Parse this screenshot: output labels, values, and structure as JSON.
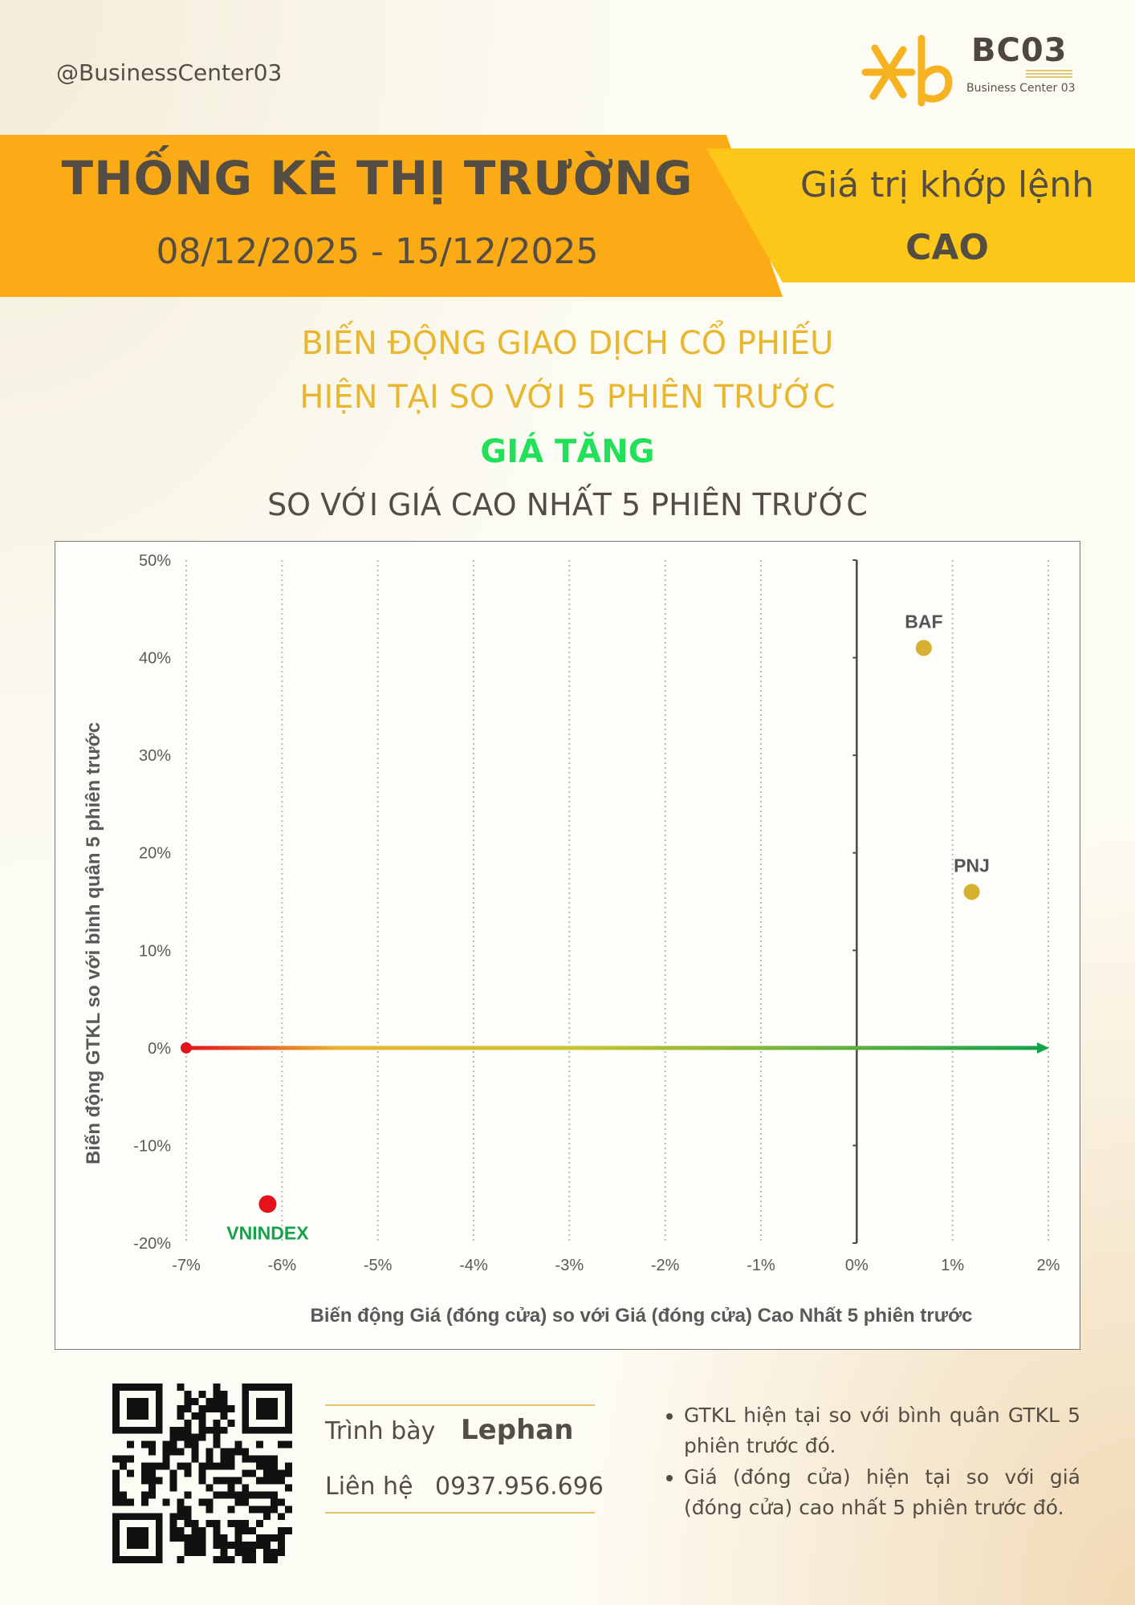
{
  "header": {
    "handle": "@BusinessCenter03",
    "logo_title": "BC03",
    "logo_subtitle": "Business Center 03"
  },
  "banner": {
    "title": "THỐNG KÊ THỊ TRƯỜNG",
    "date_range": "08/12/2025 - 15/12/2025",
    "right_line1": "Giá trị khớp lệnh",
    "right_line2": "CAO"
  },
  "headings": {
    "line1": "BIẾN ĐỘNG GIAO DỊCH CỔ PHIẾU",
    "line2": "HIỆN TẠI SO VỚI 5 PHIÊN TRƯỚC",
    "highlight": "GIÁ TĂNG",
    "line4": "SO VỚI GIÁ CAO NHẤT 5 PHIÊN TRƯỚC"
  },
  "colors": {
    "gold": "#d6b12f",
    "red": "#e3121d",
    "green": "#16a24a",
    "axis": "#4a4a4a"
  },
  "chart_data": {
    "type": "scatter",
    "xlabel": "Biến động Giá (đóng cửa) so với Giá (đóng cửa) Cao Nhất 5 phiên trước",
    "ylabel": "Biến động GTKL so với bình quân 5 phiên trước",
    "xlim": [
      -7,
      2
    ],
    "ylim": [
      -20,
      50
    ],
    "x_ticks": [
      "-7%",
      "-6%",
      "-5%",
      "-4%",
      "-3%",
      "-2%",
      "-1%",
      "0%",
      "1%",
      "2%"
    ],
    "y_ticks": [
      "50%",
      "40%",
      "30%",
      "20%",
      "10%",
      "0%",
      "-10%",
      "-20%"
    ],
    "grid": "vertical dotted",
    "points": [
      {
        "label": "BAF",
        "x": 0.7,
        "y": 41,
        "color": "gold"
      },
      {
        "label": "PNJ",
        "x": 1.2,
        "y": 16,
        "color": "gold"
      },
      {
        "label": "VNINDEX",
        "x": -6.15,
        "y": -16,
        "color": "red"
      }
    ]
  },
  "footer": {
    "presenter_label": "Trình bày",
    "presenter_name": "Lephan",
    "contact_label": "Liên hệ",
    "contact_phone": "0937.956.696",
    "notes": [
      "GTKL hiện tại so với bình quân GTKL 5 phiên trước đó.",
      "Giá (đóng cửa) hiện tại so với giá (đóng cửa) cao nhất 5 phiên trước đó."
    ]
  }
}
